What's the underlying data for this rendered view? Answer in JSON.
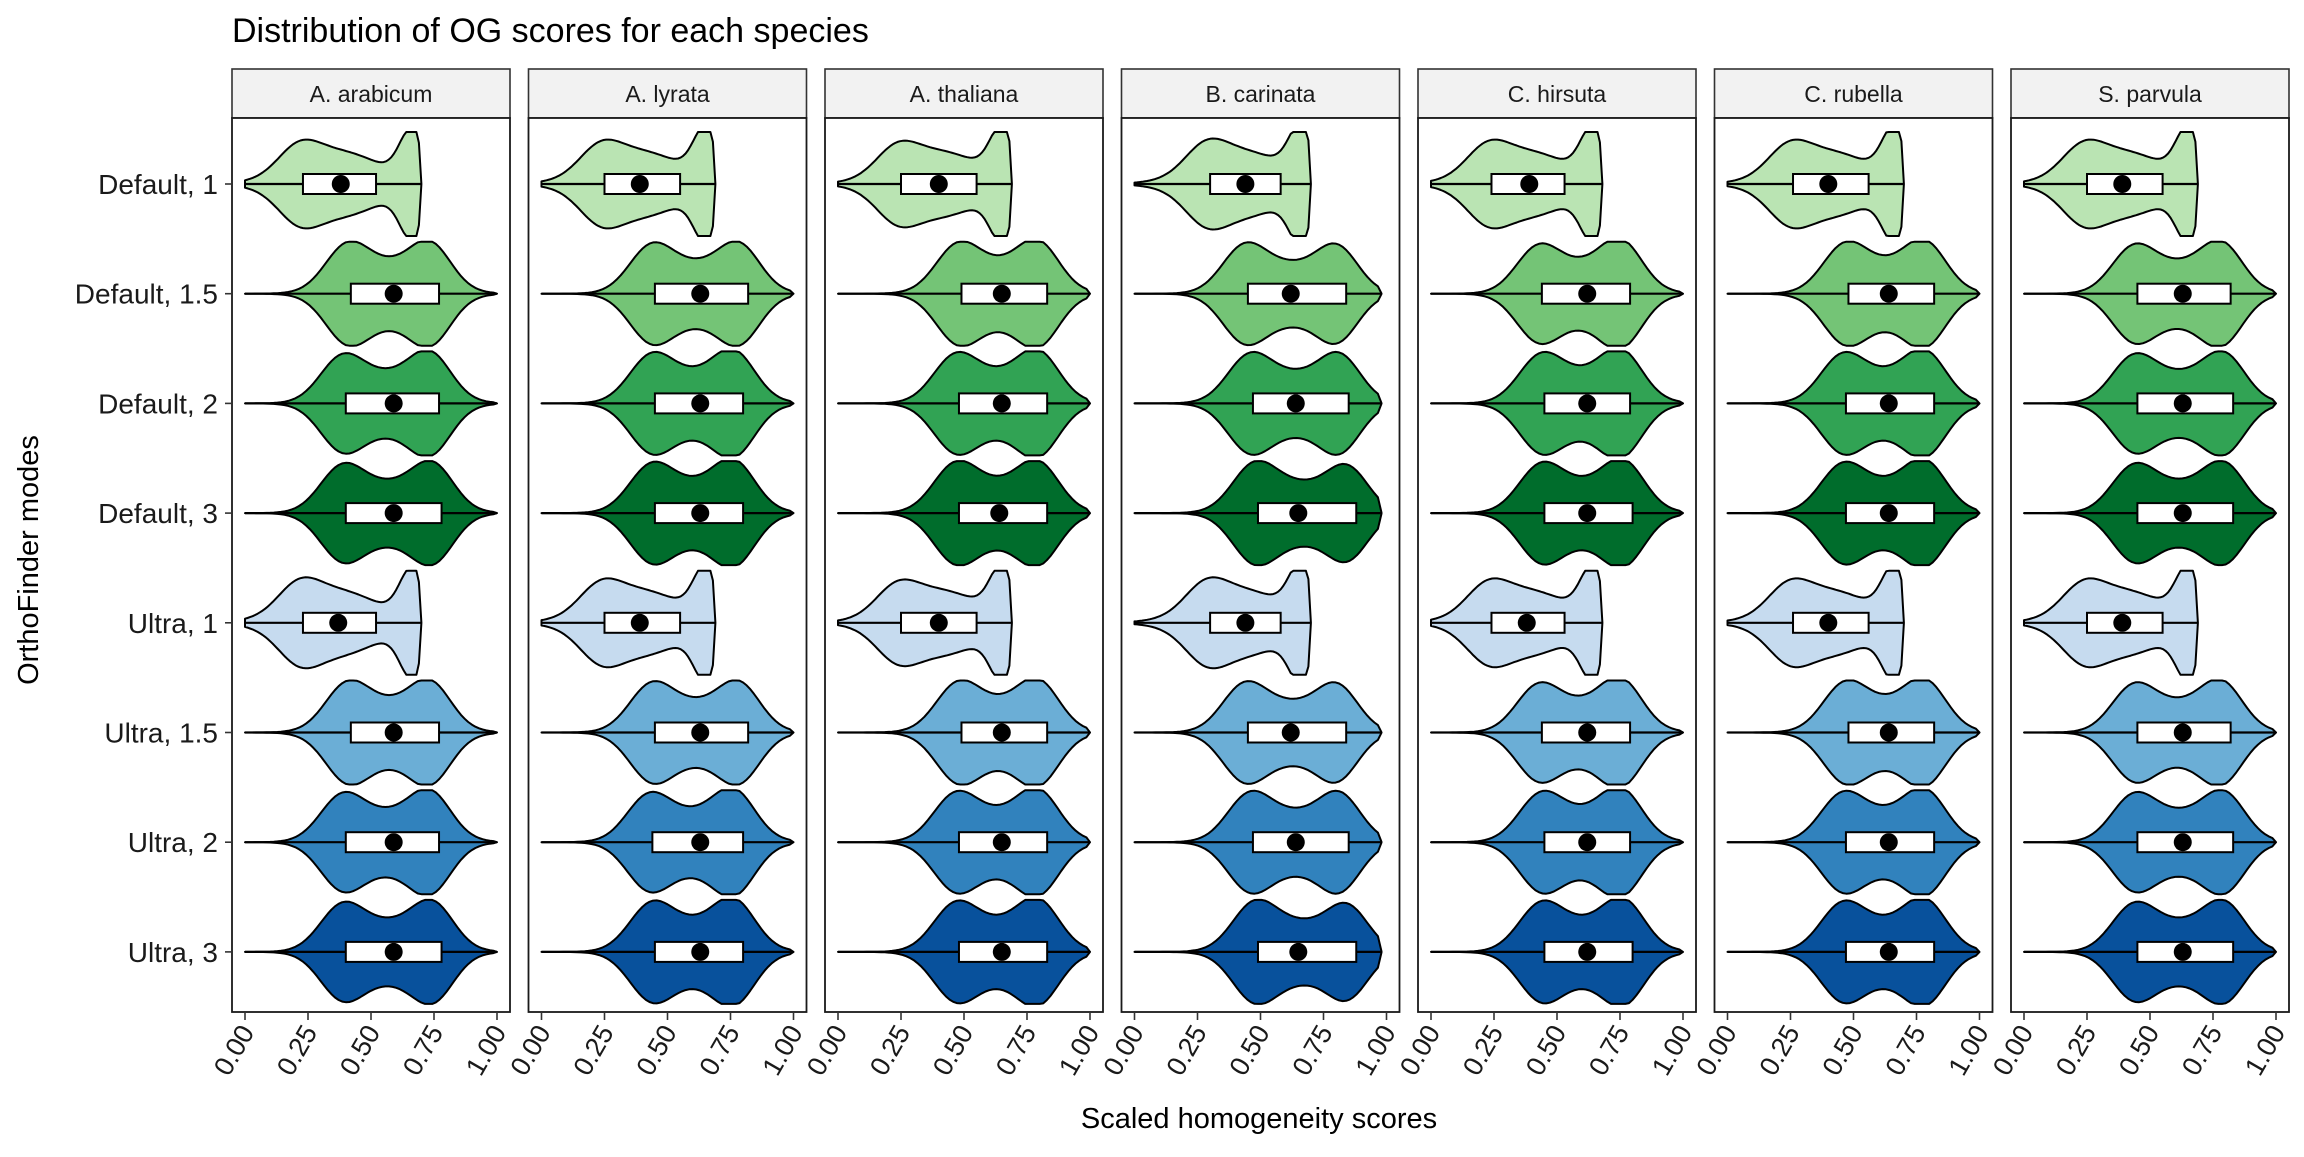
{
  "chart_data": {
    "type": "violin",
    "title": "Distribution of OG scores for each species",
    "xlabel": "Scaled homogeneity scores",
    "ylabel": "OrthoFinder modes",
    "xlim": [
      0,
      1
    ],
    "x_ticks": [
      "0.00",
      "0.25",
      "0.50",
      "0.75",
      "1.00"
    ],
    "panels": [
      "A. arabicum",
      "A. lyrata",
      "A. thaliana",
      "B. carinata",
      "C. hirsuta",
      "C. rubella",
      "S. parvula"
    ],
    "categories": [
      "Default, 1",
      "Default, 1.5",
      "Default, 2",
      "Default, 3",
      "Ultra, 1",
      "Ultra, 1.5",
      "Ultra, 2",
      "Ultra, 3"
    ],
    "category_colors": [
      "#bae4b3",
      "#74c476",
      "#31a354",
      "#006d2c",
      "#c6dbef",
      "#6baed6",
      "#3182bd",
      "#08519c"
    ],
    "grid": false,
    "legend": "none",
    "stats_by_panel": {
      "A. arabicum": [
        {
          "q1": 0.23,
          "median": 0.37,
          "q3": 0.52,
          "mean": 0.38,
          "max": 0.7
        },
        {
          "q1": 0.42,
          "median": 0.58,
          "q3": 0.77,
          "mean": 0.59,
          "max": 1.0
        },
        {
          "q1": 0.4,
          "median": 0.58,
          "q3": 0.77,
          "mean": 0.59,
          "max": 1.0
        },
        {
          "q1": 0.4,
          "median": 0.58,
          "q3": 0.78,
          "mean": 0.59,
          "max": 1.0
        },
        {
          "q1": 0.23,
          "median": 0.36,
          "q3": 0.52,
          "mean": 0.37,
          "max": 0.7
        },
        {
          "q1": 0.42,
          "median": 0.58,
          "q3": 0.77,
          "mean": 0.59,
          "max": 1.0
        },
        {
          "q1": 0.4,
          "median": 0.58,
          "q3": 0.77,
          "mean": 0.59,
          "max": 1.0
        },
        {
          "q1": 0.4,
          "median": 0.58,
          "q3": 0.78,
          "mean": 0.59,
          "max": 1.0
        }
      ],
      "A. lyrata": [
        {
          "q1": 0.25,
          "median": 0.39,
          "q3": 0.55,
          "mean": 0.39,
          "max": 0.69
        },
        {
          "q1": 0.45,
          "median": 0.62,
          "q3": 0.82,
          "mean": 0.63,
          "max": 1.0
        },
        {
          "q1": 0.45,
          "median": 0.62,
          "q3": 0.8,
          "mean": 0.63,
          "max": 1.0
        },
        {
          "q1": 0.45,
          "median": 0.62,
          "q3": 0.8,
          "mean": 0.63,
          "max": 1.0
        },
        {
          "q1": 0.25,
          "median": 0.39,
          "q3": 0.55,
          "mean": 0.39,
          "max": 0.69
        },
        {
          "q1": 0.45,
          "median": 0.62,
          "q3": 0.82,
          "mean": 0.63,
          "max": 1.0
        },
        {
          "q1": 0.44,
          "median": 0.62,
          "q3": 0.8,
          "mean": 0.63,
          "max": 1.0
        },
        {
          "q1": 0.45,
          "median": 0.62,
          "q3": 0.8,
          "mean": 0.63,
          "max": 1.0
        }
      ],
      "A. thaliana": [
        {
          "q1": 0.25,
          "median": 0.4,
          "q3": 0.55,
          "mean": 0.4,
          "max": 0.69
        },
        {
          "q1": 0.49,
          "median": 0.65,
          "q3": 0.83,
          "mean": 0.65,
          "max": 1.0
        },
        {
          "q1": 0.48,
          "median": 0.65,
          "q3": 0.83,
          "mean": 0.65,
          "max": 1.0
        },
        {
          "q1": 0.48,
          "median": 0.64,
          "q3": 0.83,
          "mean": 0.64,
          "max": 1.0
        },
        {
          "q1": 0.25,
          "median": 0.4,
          "q3": 0.55,
          "mean": 0.4,
          "max": 0.69
        },
        {
          "q1": 0.49,
          "median": 0.65,
          "q3": 0.83,
          "mean": 0.65,
          "max": 1.0
        },
        {
          "q1": 0.48,
          "median": 0.65,
          "q3": 0.83,
          "mean": 0.65,
          "max": 1.0
        },
        {
          "q1": 0.48,
          "median": 0.65,
          "q3": 0.83,
          "mean": 0.65,
          "max": 1.0
        }
      ],
      "B. carinata": [
        {
          "q1": 0.3,
          "median": 0.43,
          "q3": 0.58,
          "mean": 0.44,
          "max": 0.7
        },
        {
          "q1": 0.45,
          "median": 0.62,
          "q3": 0.84,
          "mean": 0.62,
          "max": 0.98
        },
        {
          "q1": 0.47,
          "median": 0.64,
          "q3": 0.85,
          "mean": 0.64,
          "max": 0.98
        },
        {
          "q1": 0.49,
          "median": 0.65,
          "q3": 0.88,
          "mean": 0.65,
          "max": 0.98
        },
        {
          "q1": 0.3,
          "median": 0.43,
          "q3": 0.58,
          "mean": 0.44,
          "max": 0.7
        },
        {
          "q1": 0.45,
          "median": 0.62,
          "q3": 0.84,
          "mean": 0.62,
          "max": 0.98
        },
        {
          "q1": 0.47,
          "median": 0.64,
          "q3": 0.85,
          "mean": 0.64,
          "max": 0.98
        },
        {
          "q1": 0.49,
          "median": 0.65,
          "q3": 0.88,
          "mean": 0.65,
          "max": 0.98
        }
      ],
      "C. hirsuta": [
        {
          "q1": 0.24,
          "median": 0.38,
          "q3": 0.53,
          "mean": 0.39,
          "max": 0.68
        },
        {
          "q1": 0.44,
          "median": 0.62,
          "q3": 0.79,
          "mean": 0.62,
          "max": 1.0
        },
        {
          "q1": 0.45,
          "median": 0.62,
          "q3": 0.79,
          "mean": 0.62,
          "max": 1.0
        },
        {
          "q1": 0.45,
          "median": 0.62,
          "q3": 0.8,
          "mean": 0.62,
          "max": 1.0
        },
        {
          "q1": 0.24,
          "median": 0.38,
          "q3": 0.53,
          "mean": 0.38,
          "max": 0.68
        },
        {
          "q1": 0.44,
          "median": 0.62,
          "q3": 0.79,
          "mean": 0.62,
          "max": 1.0
        },
        {
          "q1": 0.45,
          "median": 0.62,
          "q3": 0.79,
          "mean": 0.62,
          "max": 1.0
        },
        {
          "q1": 0.45,
          "median": 0.62,
          "q3": 0.8,
          "mean": 0.62,
          "max": 1.0
        }
      ],
      "C. rubella": [
        {
          "q1": 0.26,
          "median": 0.4,
          "q3": 0.56,
          "mean": 0.4,
          "max": 0.7
        },
        {
          "q1": 0.48,
          "median": 0.64,
          "q3": 0.82,
          "mean": 0.64,
          "max": 1.0
        },
        {
          "q1": 0.47,
          "median": 0.64,
          "q3": 0.82,
          "mean": 0.64,
          "max": 1.0
        },
        {
          "q1": 0.47,
          "median": 0.64,
          "q3": 0.82,
          "mean": 0.64,
          "max": 1.0
        },
        {
          "q1": 0.26,
          "median": 0.4,
          "q3": 0.56,
          "mean": 0.4,
          "max": 0.7
        },
        {
          "q1": 0.48,
          "median": 0.64,
          "q3": 0.82,
          "mean": 0.64,
          "max": 1.0
        },
        {
          "q1": 0.47,
          "median": 0.64,
          "q3": 0.82,
          "mean": 0.64,
          "max": 1.0
        },
        {
          "q1": 0.47,
          "median": 0.64,
          "q3": 0.82,
          "mean": 0.64,
          "max": 1.0
        }
      ],
      "S. parvula": [
        {
          "q1": 0.25,
          "median": 0.39,
          "q3": 0.55,
          "mean": 0.39,
          "max": 0.69
        },
        {
          "q1": 0.45,
          "median": 0.63,
          "q3": 0.82,
          "mean": 0.63,
          "max": 1.0
        },
        {
          "q1": 0.45,
          "median": 0.63,
          "q3": 0.83,
          "mean": 0.63,
          "max": 1.0
        },
        {
          "q1": 0.45,
          "median": 0.63,
          "q3": 0.83,
          "mean": 0.63,
          "max": 1.0
        },
        {
          "q1": 0.25,
          "median": 0.39,
          "q3": 0.55,
          "mean": 0.39,
          "max": 0.69
        },
        {
          "q1": 0.45,
          "median": 0.63,
          "q3": 0.82,
          "mean": 0.63,
          "max": 1.0
        },
        {
          "q1": 0.45,
          "median": 0.63,
          "q3": 0.83,
          "mean": 0.63,
          "max": 1.0
        },
        {
          "q1": 0.45,
          "median": 0.63,
          "q3": 0.83,
          "mean": 0.63,
          "max": 1.0
        }
      ]
    }
  }
}
